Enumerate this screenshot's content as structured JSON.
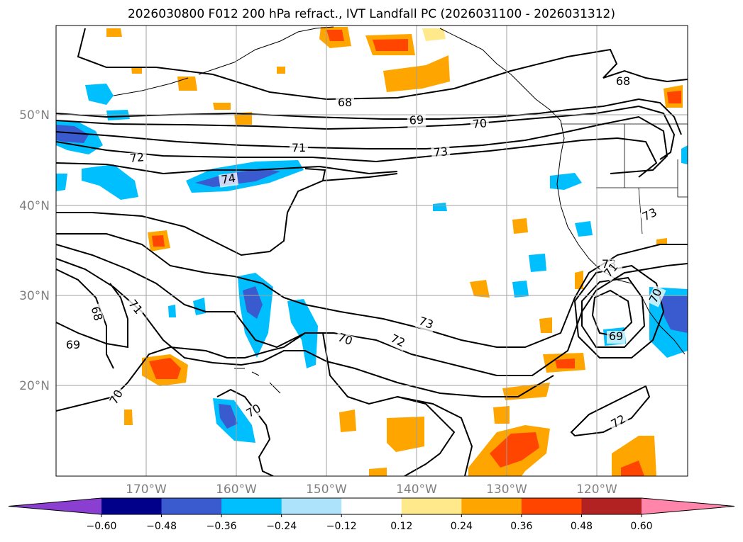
{
  "title": "2026030800 F012 200 hPa refract., IVT Landfall PC (2026031100 - 2026031312)",
  "map": {
    "lat_labels": [
      "50°N",
      "40°N",
      "30°N",
      "20°N"
    ],
    "lon_labels": [
      "170°W",
      "160°W",
      "150°W",
      "140°W",
      "130°W",
      "120°W"
    ],
    "contour_labels": [
      "68",
      "68",
      "69",
      "70",
      "71",
      "72",
      "73",
      "74",
      "73",
      "71",
      "68",
      "69",
      "70",
      "70",
      "70",
      "72",
      "73",
      "73",
      "69",
      "70",
      "72",
      "71"
    ]
  },
  "colorbar": {
    "tick_labels": [
      "−0.60",
      "−0.48",
      "−0.36",
      "−0.24",
      "−0.12",
      "0.12",
      "0.24",
      "0.36",
      "0.48",
      "0.60"
    ],
    "colors": [
      "#8b3fd1",
      "#00008b",
      "#3a5bd0",
      "#00bfff",
      "#ade3fb",
      "#ffffff",
      "#ffe98a",
      "#ffa500",
      "#ff4500",
      "#b22222",
      "#ff85aa"
    ]
  }
}
